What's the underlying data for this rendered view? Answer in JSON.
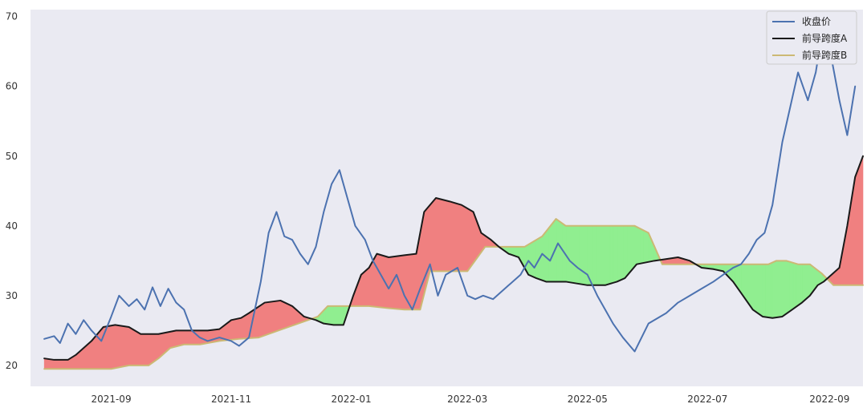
{
  "chart_data": {
    "type": "line",
    "title": "",
    "xlabel": "",
    "ylabel": "",
    "x_ticks": [
      "2021-09",
      "2021-11",
      "2022-01",
      "2022-03",
      "2022-05",
      "2022-07",
      "2022-09"
    ],
    "y_ticks": [
      20,
      30,
      40,
      50,
      60,
      70
    ],
    "xlim": [
      "2021-07-22",
      "2022-09-18"
    ],
    "ylim": [
      17,
      71
    ],
    "grid": false,
    "legend_position": "top-right",
    "background_color": "#eaeaf2",
    "fill_colors": {
      "a_above_b": "#f08080",
      "a_below_b": "#90ee90"
    },
    "series": [
      {
        "name": "收盘价",
        "color": "#4c72b0",
        "points": [
          [
            "2021-07-29",
            23.8
          ],
          [
            "2021-08-03",
            24.2
          ],
          [
            "2021-08-06",
            23.2
          ],
          [
            "2021-08-10",
            26
          ],
          [
            "2021-08-14",
            24.5
          ],
          [
            "2021-08-18",
            26.5
          ],
          [
            "2021-08-22",
            25
          ],
          [
            "2021-08-27",
            23.5
          ],
          [
            "2021-09-01",
            27
          ],
          [
            "2021-09-05",
            30
          ],
          [
            "2021-09-10",
            28.5
          ],
          [
            "2021-09-14",
            29.5
          ],
          [
            "2021-09-18",
            28
          ],
          [
            "2021-09-22",
            31.2
          ],
          [
            "2021-09-26",
            28.5
          ],
          [
            "2021-09-30",
            31
          ],
          [
            "2021-10-04",
            29
          ],
          [
            "2021-10-08",
            28
          ],
          [
            "2021-10-12",
            25
          ],
          [
            "2021-10-16",
            24
          ],
          [
            "2021-10-20",
            23.5
          ],
          [
            "2021-10-26",
            24
          ],
          [
            "2021-11-01",
            23.5
          ],
          [
            "2021-11-05",
            22.8
          ],
          [
            "2021-11-10",
            24
          ],
          [
            "2021-11-16",
            32
          ],
          [
            "2021-11-20",
            39
          ],
          [
            "2021-11-24",
            42
          ],
          [
            "2021-11-28",
            38.5
          ],
          [
            "2021-12-02",
            38
          ],
          [
            "2021-12-06",
            36
          ],
          [
            "2021-12-10",
            34.5
          ],
          [
            "2021-12-14",
            37
          ],
          [
            "2021-12-18",
            42
          ],
          [
            "2021-12-22",
            46
          ],
          [
            "2021-12-26",
            48
          ],
          [
            "2021-12-30",
            44
          ],
          [
            "2022-01-03",
            40
          ],
          [
            "2022-01-08",
            38
          ],
          [
            "2022-01-12",
            35
          ],
          [
            "2022-01-16",
            33
          ],
          [
            "2022-01-20",
            31
          ],
          [
            "2022-01-24",
            33
          ],
          [
            "2022-01-28",
            30
          ],
          [
            "2022-02-01",
            28
          ],
          [
            "2022-02-05",
            31
          ],
          [
            "2022-02-10",
            34.5
          ],
          [
            "2022-02-14",
            30
          ],
          [
            "2022-02-18",
            33
          ],
          [
            "2022-02-24",
            34
          ],
          [
            "2022-03-01",
            30
          ],
          [
            "2022-03-05",
            29.5
          ],
          [
            "2022-03-09",
            30
          ],
          [
            "2022-03-14",
            29.5
          ],
          [
            "2022-03-18",
            30.5
          ],
          [
            "2022-03-22",
            31.5
          ],
          [
            "2022-03-28",
            33
          ],
          [
            "2022-04-01",
            35
          ],
          [
            "2022-04-04",
            34
          ],
          [
            "2022-04-08",
            36
          ],
          [
            "2022-04-12",
            35
          ],
          [
            "2022-04-16",
            37.5
          ],
          [
            "2022-04-22",
            35
          ],
          [
            "2022-04-26",
            34
          ],
          [
            "2022-05-01",
            33
          ],
          [
            "2022-05-06",
            30
          ],
          [
            "2022-05-10",
            28
          ],
          [
            "2022-05-14",
            26
          ],
          [
            "2022-05-19",
            24
          ],
          [
            "2022-05-25",
            22
          ],
          [
            "2022-06-01",
            26
          ],
          [
            "2022-06-10",
            27.5
          ],
          [
            "2022-06-16",
            29
          ],
          [
            "2022-06-22",
            30
          ],
          [
            "2022-06-28",
            31
          ],
          [
            "2022-07-04",
            32
          ],
          [
            "2022-07-09",
            33
          ],
          [
            "2022-07-14",
            34
          ],
          [
            "2022-07-18",
            34.5
          ],
          [
            "2022-07-22",
            36
          ],
          [
            "2022-07-26",
            38
          ],
          [
            "2022-07-30",
            39
          ],
          [
            "2022-08-03",
            43
          ],
          [
            "2022-08-08",
            52
          ],
          [
            "2022-08-12",
            57
          ],
          [
            "2022-08-16",
            62
          ],
          [
            "2022-08-21",
            58
          ],
          [
            "2022-08-25",
            62
          ],
          [
            "2022-08-29",
            69
          ],
          [
            "2022-09-02",
            64
          ],
          [
            "2022-09-06",
            58
          ],
          [
            "2022-09-10",
            53
          ],
          [
            "2022-09-14",
            60
          ]
        ]
      },
      {
        "name": "前导跨度A",
        "color": "#1a1a1a",
        "points": [
          [
            "2021-07-29",
            21
          ],
          [
            "2021-08-03",
            20.8
          ],
          [
            "2021-08-10",
            20.8
          ],
          [
            "2021-08-14",
            21.5
          ],
          [
            "2021-08-22",
            23.5
          ],
          [
            "2021-08-28",
            25.5
          ],
          [
            "2021-09-03",
            25.8
          ],
          [
            "2021-09-10",
            25.5
          ],
          [
            "2021-09-16",
            24.5
          ],
          [
            "2021-09-25",
            24.5
          ],
          [
            "2021-10-04",
            25
          ],
          [
            "2021-10-12",
            25
          ],
          [
            "2021-10-20",
            25
          ],
          [
            "2021-10-26",
            25.2
          ],
          [
            "2021-11-01",
            26.5
          ],
          [
            "2021-11-06",
            26.8
          ],
          [
            "2021-11-10",
            27.5
          ],
          [
            "2021-11-18",
            29
          ],
          [
            "2021-11-26",
            29.3
          ],
          [
            "2021-12-02",
            28.5
          ],
          [
            "2021-12-08",
            27
          ],
          [
            "2021-12-14",
            26.5
          ],
          [
            "2021-12-18",
            26
          ],
          [
            "2021-12-23",
            25.8
          ],
          [
            "2021-12-28",
            25.8
          ],
          [
            "2022-01-02",
            30
          ],
          [
            "2022-01-06",
            33
          ],
          [
            "2022-01-10",
            34
          ],
          [
            "2022-01-14",
            36
          ],
          [
            "2022-01-20",
            35.5
          ],
          [
            "2022-01-28",
            35.8
          ],
          [
            "2022-02-03",
            36
          ],
          [
            "2022-02-07",
            42
          ],
          [
            "2022-02-13",
            44
          ],
          [
            "2022-02-20",
            43.5
          ],
          [
            "2022-02-26",
            43
          ],
          [
            "2022-03-04",
            42
          ],
          [
            "2022-03-08",
            39
          ],
          [
            "2022-03-13",
            38
          ],
          [
            "2022-03-17",
            37
          ],
          [
            "2022-03-22",
            36
          ],
          [
            "2022-03-27",
            35.5
          ],
          [
            "2022-04-01",
            33
          ],
          [
            "2022-04-05",
            32.5
          ],
          [
            "2022-04-10",
            32
          ],
          [
            "2022-04-20",
            32
          ],
          [
            "2022-05-01",
            31.5
          ],
          [
            "2022-05-10",
            31.5
          ],
          [
            "2022-05-16",
            32
          ],
          [
            "2022-05-20",
            32.5
          ],
          [
            "2022-05-26",
            34.5
          ],
          [
            "2022-06-04",
            35
          ],
          [
            "2022-06-16",
            35.5
          ],
          [
            "2022-06-22",
            35
          ],
          [
            "2022-06-28",
            34
          ],
          [
            "2022-07-04",
            33.8
          ],
          [
            "2022-07-09",
            33.5
          ],
          [
            "2022-07-14",
            32
          ],
          [
            "2022-07-19",
            30
          ],
          [
            "2022-07-24",
            28
          ],
          [
            "2022-07-29",
            27
          ],
          [
            "2022-08-03",
            26.8
          ],
          [
            "2022-08-08",
            27
          ],
          [
            "2022-08-13",
            28
          ],
          [
            "2022-08-18",
            29
          ],
          [
            "2022-08-22",
            30
          ],
          [
            "2022-08-26",
            31.5
          ],
          [
            "2022-08-29",
            32
          ],
          [
            "2022-09-02",
            33
          ],
          [
            "2022-09-06",
            34
          ],
          [
            "2022-09-10",
            40
          ],
          [
            "2022-09-14",
            47
          ],
          [
            "2022-09-18",
            50
          ]
        ]
      },
      {
        "name": "前导跨度B",
        "color": "#ccb974",
        "points": [
          [
            "2021-07-29",
            19.5
          ],
          [
            "2021-08-10",
            19.5
          ],
          [
            "2021-08-20",
            19.5
          ],
          [
            "2021-09-01",
            19.5
          ],
          [
            "2021-09-10",
            20
          ],
          [
            "2021-09-20",
            20
          ],
          [
            "2021-09-25",
            21
          ],
          [
            "2021-10-01",
            22.5
          ],
          [
            "2021-10-08",
            23
          ],
          [
            "2021-10-16",
            23
          ],
          [
            "2021-10-26",
            23.5
          ],
          [
            "2021-11-05",
            23.8
          ],
          [
            "2021-11-15",
            24
          ],
          [
            "2021-11-25",
            25
          ],
          [
            "2021-12-05",
            26
          ],
          [
            "2021-12-15",
            27
          ],
          [
            "2021-12-20",
            28.5
          ],
          [
            "2021-12-28",
            28.5
          ],
          [
            "2022-01-10",
            28.5
          ],
          [
            "2022-01-20",
            28.2
          ],
          [
            "2022-01-28",
            28
          ],
          [
            "2022-02-05",
            28
          ],
          [
            "2022-02-10",
            33.5
          ],
          [
            "2022-02-20",
            33.5
          ],
          [
            "2022-03-01",
            33.5
          ],
          [
            "2022-03-10",
            37
          ],
          [
            "2022-03-20",
            37
          ],
          [
            "2022-03-30",
            37
          ],
          [
            "2022-04-08",
            38.5
          ],
          [
            "2022-04-15",
            41
          ],
          [
            "2022-04-20",
            40
          ],
          [
            "2022-05-01",
            40
          ],
          [
            "2022-05-15",
            40
          ],
          [
            "2022-05-25",
            40
          ],
          [
            "2022-06-01",
            39
          ],
          [
            "2022-06-08",
            34.5
          ],
          [
            "2022-06-20",
            34.5
          ],
          [
            "2022-07-01",
            34.5
          ],
          [
            "2022-07-10",
            34.5
          ],
          [
            "2022-07-18",
            34.5
          ],
          [
            "2022-07-26",
            34.5
          ],
          [
            "2022-08-01",
            34.5
          ],
          [
            "2022-08-05",
            35
          ],
          [
            "2022-08-10",
            35
          ],
          [
            "2022-08-16",
            34.5
          ],
          [
            "2022-08-22",
            34.5
          ],
          [
            "2022-08-28",
            33.2
          ],
          [
            "2022-09-03",
            31.5
          ],
          [
            "2022-09-10",
            31.5
          ],
          [
            "2022-09-18",
            31.5
          ]
        ]
      }
    ]
  }
}
